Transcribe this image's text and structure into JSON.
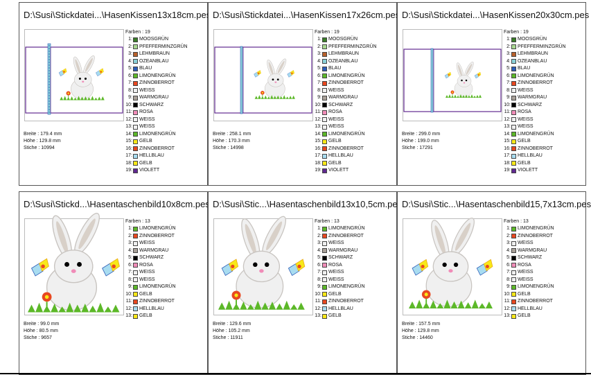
{
  "palette": {
    "MOOSGRÜN": "#3a7d28",
    "PFEFFERMINZGRÜN": "#a8d890",
    "LEHMBRAUN": "#b8602a",
    "OZEANBLAU": "#8ad0d8",
    "BLAU": "#2c5cb8",
    "LIMONENGRÜN": "#5cb828",
    "ZINNOBERROT": "#e84820",
    "WEISS": "#f0f0f0",
    "WARMGRAU": "#a8a098",
    "SCHWARZ": "#000000",
    "ROSA": "#f08cb8",
    "GELB": "#f8e818",
    "HELLBLAU": "#a8dcf0",
    "VIOLETT": "#602890"
  },
  "cards": [
    {
      "title": "D:\\Susi\\Stickdatei...\\HasenKissen13x18cm.pes",
      "type": "pillow",
      "colors_header": "Farben : 19",
      "colors": [
        {
          "n": "1:",
          "name": "MOOSGRÜN"
        },
        {
          "n": "2:",
          "name": "PFEFFERMINZGRÜN"
        },
        {
          "n": "3:",
          "name": "LEHMBRAUN"
        },
        {
          "n": "4:",
          "name": "OZEANBLAU"
        },
        {
          "n": "5:",
          "name": "BLAU"
        },
        {
          "n": "6:",
          "name": "LIMONENGRÜN"
        },
        {
          "n": "7:",
          "name": "ZINNOBERROT"
        },
        {
          "n": "8:",
          "name": "WEISS"
        },
        {
          "n": "9:",
          "name": "WARMGRAU"
        },
        {
          "n": "10:",
          "name": "SCHWARZ"
        },
        {
          "n": "11:",
          "name": "ROSA"
        },
        {
          "n": "12:",
          "name": "WEISS"
        },
        {
          "n": "13:",
          "name": "WEISS"
        },
        {
          "n": "14:",
          "name": "LIMONENGRÜN"
        },
        {
          "n": "15:",
          "name": "GELB"
        },
        {
          "n": "16:",
          "name": "ZINNOBERROT"
        },
        {
          "n": "17:",
          "name": "HELLBLAU"
        },
        {
          "n": "18:",
          "name": "GELB"
        },
        {
          "n": "19:",
          "name": "VIOLETT"
        }
      ],
      "stats": [
        "Breite : 179.4 mm",
        "Höhe : 129.8 mm",
        "Stiche : 10994"
      ]
    },
    {
      "title": "D:\\Susi\\Stickdatei...\\HasenKissen17x26cm.pes",
      "type": "pillow",
      "colors_header": "Farben : 19",
      "colors": [
        {
          "n": "1:",
          "name": "MOOSGRÜN"
        },
        {
          "n": "2:",
          "name": "PFEFFERMINZGRÜN"
        },
        {
          "n": "3:",
          "name": "LEHMBRAUN"
        },
        {
          "n": "4:",
          "name": "OZEANBLAU"
        },
        {
          "n": "5:",
          "name": "BLAU"
        },
        {
          "n": "6:",
          "name": "LIMONENGRÜN"
        },
        {
          "n": "7:",
          "name": "ZINNOBERROT"
        },
        {
          "n": "8:",
          "name": "WEISS"
        },
        {
          "n": "9:",
          "name": "WARMGRAU"
        },
        {
          "n": "10:",
          "name": "SCHWARZ"
        },
        {
          "n": "11:",
          "name": "ROSA"
        },
        {
          "n": "12:",
          "name": "WEISS"
        },
        {
          "n": "13:",
          "name": "WEISS"
        },
        {
          "n": "14:",
          "name": "LIMONENGRÜN"
        },
        {
          "n": "15:",
          "name": "GELB"
        },
        {
          "n": "16:",
          "name": "ZINNOBERROT"
        },
        {
          "n": "17:",
          "name": "HELLBLAU"
        },
        {
          "n": "18:",
          "name": "GELB"
        },
        {
          "n": "19:",
          "name": "VIOLETT"
        }
      ],
      "stats": [
        "Breite : 258.1 mm",
        "Höhe : 170.3 mm",
        "Stiche : 14998"
      ]
    },
    {
      "title": "D:\\Susi\\Stickdatei...\\HasenKissen20x30cm.pes",
      "type": "pillow",
      "colors_header": "Farben : 19",
      "colors": [
        {
          "n": "1:",
          "name": "MOOSGRÜN"
        },
        {
          "n": "2:",
          "name": "PFEFFERMINZGRÜN"
        },
        {
          "n": "3:",
          "name": "LEHMBRAUN"
        },
        {
          "n": "4:",
          "name": "OZEANBLAU"
        },
        {
          "n": "5:",
          "name": "BLAU"
        },
        {
          "n": "6:",
          "name": "LIMONENGRÜN"
        },
        {
          "n": "7:",
          "name": "ZINNOBERROT"
        },
        {
          "n": "8:",
          "name": "WEISS"
        },
        {
          "n": "9:",
          "name": "WARMGRAU"
        },
        {
          "n": "10:",
          "name": "SCHWARZ"
        },
        {
          "n": "11:",
          "name": "ROSA"
        },
        {
          "n": "12:",
          "name": "WEISS"
        },
        {
          "n": "13:",
          "name": "WEISS"
        },
        {
          "n": "14:",
          "name": "LIMONENGRÜN"
        },
        {
          "n": "15:",
          "name": "GELB"
        },
        {
          "n": "16:",
          "name": "ZINNOBERROT"
        },
        {
          "n": "17:",
          "name": "HELLBLAU"
        },
        {
          "n": "18:",
          "name": "GELB"
        },
        {
          "n": "19:",
          "name": "VIOLETT"
        }
      ],
      "stats": [
        "Breite : 299.0 mm",
        "Höhe : 199.0 mm",
        "Stiche : 17291"
      ]
    },
    {
      "title": "D:\\Susi\\Stickd...\\Hasentaschenbild10x8cm.pes",
      "type": "bunny",
      "colors_header": "Farben : 13",
      "colors": [
        {
          "n": "1:",
          "name": "LIMONENGRÜN"
        },
        {
          "n": "2:",
          "name": "ZINNOBERROT"
        },
        {
          "n": "3:",
          "name": "WEISS"
        },
        {
          "n": "4:",
          "name": "WARMGRAU"
        },
        {
          "n": "5:",
          "name": "SCHWARZ"
        },
        {
          "n": "6:",
          "name": "ROSA"
        },
        {
          "n": "7:",
          "name": "WEISS"
        },
        {
          "n": "8:",
          "name": "WEISS"
        },
        {
          "n": "9:",
          "name": "LIMONENGRÜN"
        },
        {
          "n": "10:",
          "name": "GELB"
        },
        {
          "n": "11:",
          "name": "ZINNOBERROT"
        },
        {
          "n": "12:",
          "name": "HELLBLAU"
        },
        {
          "n": "13:",
          "name": "GELB"
        }
      ],
      "stats": [
        "Breite : 99.0 mm",
        "Höhe : 80.5 mm",
        "Stiche : 9657"
      ]
    },
    {
      "title": "D:\\Susi\\Stic...\\Hasentaschenbild13x10,5cm.pes",
      "type": "bunny",
      "colors_header": "Farben : 13",
      "colors": [
        {
          "n": "1:",
          "name": "LIMONENGRÜN"
        },
        {
          "n": "2:",
          "name": "ZINNOBERROT"
        },
        {
          "n": "3:",
          "name": "WEISS"
        },
        {
          "n": "4:",
          "name": "WARMGRAU"
        },
        {
          "n": "5:",
          "name": "SCHWARZ"
        },
        {
          "n": "6:",
          "name": "ROSA"
        },
        {
          "n": "7:",
          "name": "WEISS"
        },
        {
          "n": "8:",
          "name": "WEISS"
        },
        {
          "n": "9:",
          "name": "LIMONENGRÜN"
        },
        {
          "n": "10:",
          "name": "GELB"
        },
        {
          "n": "11:",
          "name": "ZINNOBERROT"
        },
        {
          "n": "12:",
          "name": "HELLBLAU"
        },
        {
          "n": "13:",
          "name": "GELB"
        }
      ],
      "stats": [
        "Breite : 129.6 mm",
        "Höhe : 105.2 mm",
        "Stiche : 11911"
      ]
    },
    {
      "title": "D:\\Susi\\Stic...\\Hasentaschenbild15,7x13cm.pes",
      "type": "bunny",
      "colors_header": "Farben : 13",
      "colors": [
        {
          "n": "1:",
          "name": "LIMONENGRÜN"
        },
        {
          "n": "2:",
          "name": "ZINNOBERROT"
        },
        {
          "n": "3:",
          "name": "WEISS"
        },
        {
          "n": "4:",
          "name": "WARMGRAU"
        },
        {
          "n": "5:",
          "name": "SCHWARZ"
        },
        {
          "n": "6:",
          "name": "ROSA"
        },
        {
          "n": "7:",
          "name": "WEISS"
        },
        {
          "n": "8:",
          "name": "WEISS"
        },
        {
          "n": "9:",
          "name": "LIMONENGRÜN"
        },
        {
          "n": "10:",
          "name": "GELB"
        },
        {
          "n": "11:",
          "name": "ZINNOBERROT"
        },
        {
          "n": "12:",
          "name": "HELLBLAU"
        },
        {
          "n": "13:",
          "name": "GELB"
        }
      ],
      "stats": [
        "Breite : 157.5 mm",
        "Höhe : 129.8 mm",
        "Stiche : 14460"
      ]
    }
  ]
}
